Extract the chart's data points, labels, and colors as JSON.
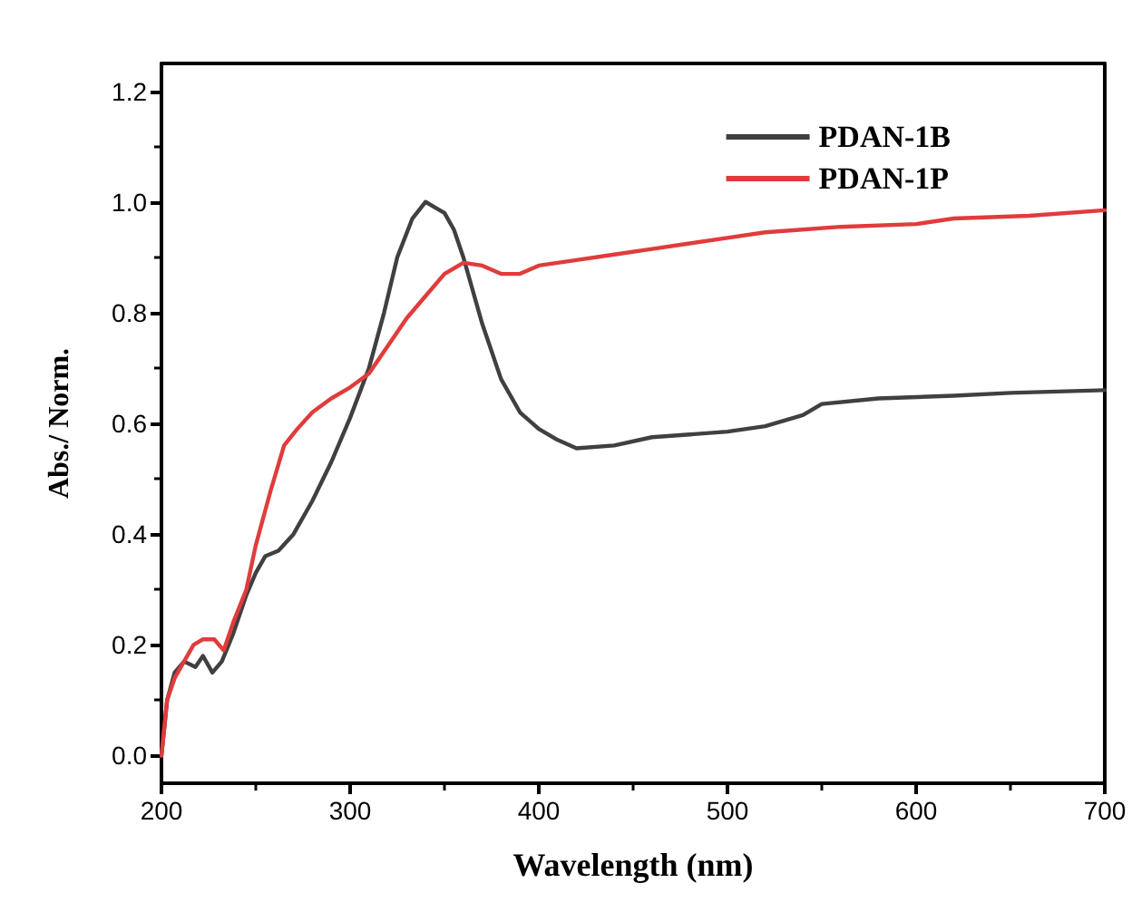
{
  "chart_data": {
    "type": "line",
    "xlabel": "Wavelength (nm)",
    "ylabel": "Abs./ Norm.",
    "xlim": [
      200,
      700
    ],
    "xticks": [
      200,
      300,
      400,
      500,
      600,
      700
    ],
    "ylim": [
      -0.05,
      1.25
    ],
    "yticks": [
      {
        "value": 0,
        "label": "0.0"
      },
      {
        "value": 0.2,
        "label": "0.2"
      },
      {
        "value": 0.4,
        "label": "0.4"
      },
      {
        "value": 0.6,
        "label": "0.6"
      },
      {
        "value": 0.8,
        "label": "0.8"
      },
      {
        "value": 1,
        "label": "1.0"
      },
      {
        "value": 1.2,
        "label": "1.2"
      }
    ],
    "grid": false,
    "legend": "top right",
    "marker": "none",
    "line_style": "solid",
    "series": [
      {
        "name": "PDAN-1B",
        "color": "#404040",
        "x": [
          200,
          203,
          207,
          212,
          218,
          222,
          227,
          232,
          238,
          245,
          250,
          255,
          262,
          270,
          280,
          290,
          300,
          310,
          318,
          325,
          333,
          340,
          345,
          350,
          355,
          360,
          370,
          380,
          390,
          400,
          410,
          420,
          440,
          460,
          480,
          500,
          520,
          540,
          550,
          580,
          620,
          650,
          700
        ],
        "values": [
          0.0,
          0.1,
          0.15,
          0.17,
          0.16,
          0.18,
          0.15,
          0.17,
          0.22,
          0.29,
          0.33,
          0.36,
          0.37,
          0.4,
          0.46,
          0.53,
          0.61,
          0.7,
          0.8,
          0.9,
          0.97,
          1.0,
          0.99,
          0.98,
          0.95,
          0.9,
          0.78,
          0.68,
          0.62,
          0.59,
          0.57,
          0.555,
          0.56,
          0.575,
          0.58,
          0.585,
          0.595,
          0.615,
          0.635,
          0.645,
          0.65,
          0.655,
          0.66
        ]
      },
      {
        "name": "PDAN-1P",
        "color": "#e03c3c",
        "x": [
          200,
          203,
          207,
          212,
          217,
          222,
          228,
          233,
          238,
          245,
          250,
          258,
          265,
          272,
          280,
          290,
          300,
          310,
          320,
          330,
          340,
          350,
          360,
          370,
          380,
          390,
          400,
          420,
          440,
          460,
          480,
          500,
          520,
          560,
          600,
          620,
          660,
          700
        ],
        "values": [
          0.0,
          0.1,
          0.14,
          0.17,
          0.2,
          0.21,
          0.21,
          0.19,
          0.24,
          0.3,
          0.38,
          0.48,
          0.56,
          0.59,
          0.62,
          0.645,
          0.665,
          0.69,
          0.74,
          0.79,
          0.83,
          0.87,
          0.89,
          0.885,
          0.87,
          0.87,
          0.885,
          0.895,
          0.905,
          0.915,
          0.925,
          0.935,
          0.945,
          0.955,
          0.96,
          0.97,
          0.975,
          0.985
        ]
      }
    ]
  }
}
